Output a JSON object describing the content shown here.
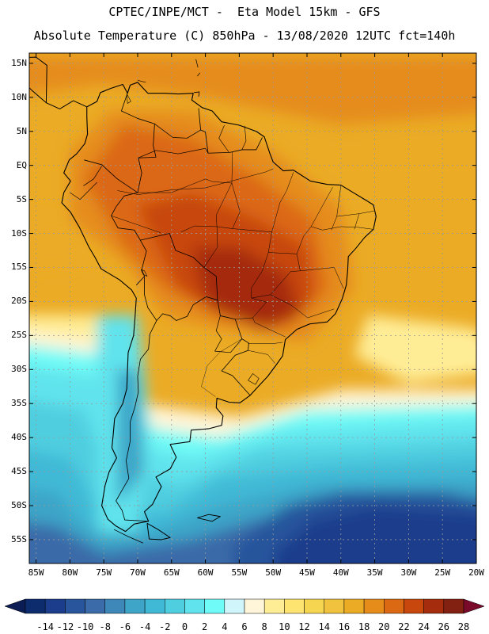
{
  "header": {
    "line1": "CPTEC/INPE/MCT -  Eta Model 15km - GFS",
    "line2": "Absolute Temperature (C) 850hPa - 13/08/2020 12UTC fct=140h"
  },
  "axes": {
    "lat_labels": [
      "15N",
      "10N",
      "5N",
      "EQ",
      "5S",
      "10S",
      "15S",
      "20S",
      "25S",
      "30S",
      "35S",
      "40S",
      "45S",
      "50S",
      "55S"
    ],
    "lat_values": [
      15,
      10,
      5,
      0,
      -5,
      -10,
      -15,
      -20,
      -25,
      -30,
      -35,
      -40,
      -45,
      -50,
      -55
    ],
    "lon_labels": [
      "85W",
      "80W",
      "75W",
      "70W",
      "65W",
      "60W",
      "55W",
      "50W",
      "45W",
      "40W",
      "35W",
      "30W",
      "25W",
      "20W"
    ],
    "lon_values": [
      -85,
      -80,
      -75,
      -70,
      -65,
      -60,
      -55,
      -50,
      -45,
      -40,
      -35,
      -30,
      -25,
      -20
    ],
    "lat_range": [
      -58.5,
      16.5
    ],
    "lon_range": [
      -86,
      -20
    ]
  },
  "colorbar": {
    "labels": [
      "-14",
      "-12",
      "-10",
      "-8",
      "-6",
      "-4",
      "-2",
      "0",
      "2",
      "4",
      "6",
      "8",
      "10",
      "12",
      "14",
      "16",
      "18",
      "20",
      "22",
      "24",
      "26",
      "28"
    ],
    "colors": [
      "#0c2c6e",
      "#1c3c8c",
      "#28559c",
      "#3b6ba8",
      "#3d88b8",
      "#3ea4c8",
      "#40b9d6",
      "#4fcee0",
      "#60e3ec",
      "#6ffbf7",
      "#d0f6fb",
      "#fff5d8",
      "#ffed96",
      "#fde36f",
      "#f6d551",
      "#f0c23d",
      "#ebab25",
      "#e58c1a",
      "#db6813",
      "#c7470d",
      "#a52c0c",
      "#822012"
    ],
    "under_color": "#0c1d55",
    "over_color": "#7a0a2a"
  },
  "colors": {
    "coast": "#000000",
    "grid": "#999999"
  }
}
